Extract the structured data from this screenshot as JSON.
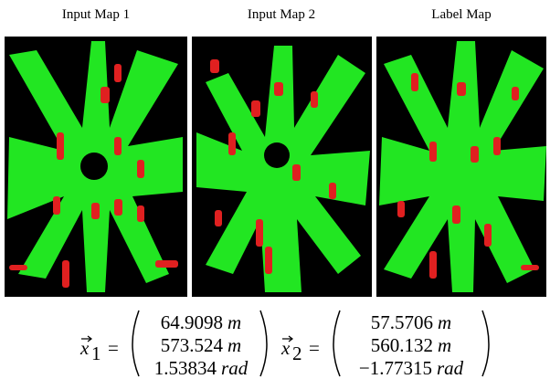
{
  "panels": [
    {
      "title": "Input Map 1"
    },
    {
      "title": "Input Map 2"
    },
    {
      "title": "Label Map"
    }
  ],
  "equations": [
    {
      "symbol": "x",
      "subscript": "1",
      "relation": "=",
      "rows": [
        {
          "value": "64.9098",
          "unit": "m"
        },
        {
          "value": "573.524",
          "unit": "m"
        },
        {
          "value": "1.53834",
          "unit": "rad"
        }
      ]
    },
    {
      "symbol": "x",
      "subscript": "2",
      "relation": "=",
      "rows": [
        {
          "value": "57.5706",
          "unit": "m"
        },
        {
          "value": "560.132",
          "unit": "m"
        },
        {
          "value": "−1.77315",
          "unit": "rad"
        }
      ]
    }
  ]
}
